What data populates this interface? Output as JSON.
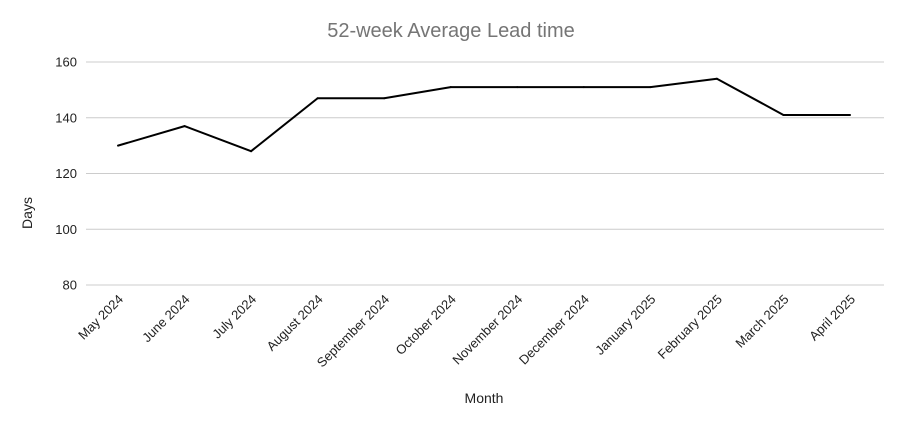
{
  "chart_data": {
    "type": "line",
    "title": "52-week Average Lead time",
    "xlabel": "Month",
    "ylabel": "Days",
    "categories": [
      "May 2024",
      "June 2024",
      "July 2024",
      "August 2024",
      "September 2024",
      "October 2024",
      "November 2024",
      "December 2024",
      "January 2025",
      "February 2025",
      "March 2025",
      "April 2025"
    ],
    "series": [
      {
        "values": [
          130,
          137,
          128,
          147,
          147,
          151,
          151,
          151,
          151,
          154,
          141,
          141
        ]
      }
    ],
    "ylim": [
      80,
      160
    ],
    "yticks": [
      80,
      100,
      120,
      140,
      160
    ],
    "grid": true,
    "legend": "none",
    "line_color": "#000000"
  }
}
